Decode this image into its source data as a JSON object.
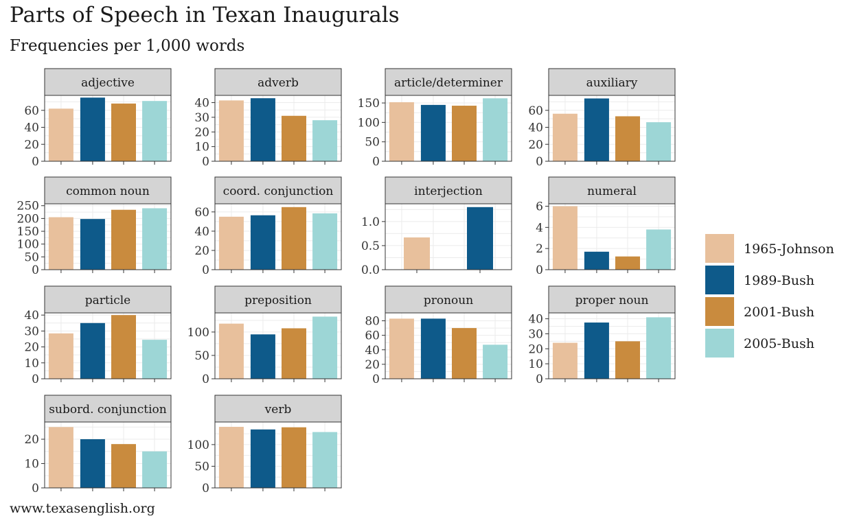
{
  "title": "Parts of Speech in Texan Inaugurals",
  "subtitle": "Frequencies per 1,000 words",
  "caption": "www.texasenglish.org",
  "chart_data": {
    "type": "bar",
    "facet": "free_y",
    "legend_position": "right",
    "grid": true,
    "series": [
      {
        "name": "1965-Johnson",
        "color": "#e8c09c"
      },
      {
        "name": "1989-Bush",
        "color": "#0e5a8a"
      },
      {
        "name": "2001-Bush",
        "color": "#c98b3e"
      },
      {
        "name": "2005-Bush",
        "color": "#9dd6d6"
      }
    ],
    "panels": [
      {
        "label": "adjective",
        "ylim": [
          0,
          76
        ],
        "ticks": [
          0,
          20,
          40,
          60
        ],
        "values": [
          {
            "series": 0,
            "value": 62
          },
          {
            "series": 1,
            "value": 75
          },
          {
            "series": 2,
            "value": 68
          },
          {
            "series": 3,
            "value": 71
          }
        ]
      },
      {
        "label": "adverb",
        "ylim": [
          0,
          44
        ],
        "ticks": [
          0,
          10,
          20,
          30,
          40
        ],
        "values": [
          {
            "series": 0,
            "value": 41.5
          },
          {
            "series": 1,
            "value": 43
          },
          {
            "series": 2,
            "value": 31
          },
          {
            "series": 3,
            "value": 28
          }
        ]
      },
      {
        "label": "article/determiner",
        "ylim": [
          0,
          166
        ],
        "ticks": [
          0,
          50,
          100,
          150
        ],
        "values": [
          {
            "series": 0,
            "value": 152
          },
          {
            "series": 1,
            "value": 145
          },
          {
            "series": 2,
            "value": 143
          },
          {
            "series": 3,
            "value": 162
          }
        ]
      },
      {
        "label": "auxiliary",
        "ylim": [
          0,
          76
        ],
        "ticks": [
          0,
          20,
          40,
          60
        ],
        "values": [
          {
            "series": 0,
            "value": 56
          },
          {
            "series": 1,
            "value": 74
          },
          {
            "series": 2,
            "value": 53
          },
          {
            "series": 3,
            "value": 46
          }
        ]
      },
      {
        "label": "common noun",
        "ylim": [
          0,
          252
        ],
        "ticks": [
          0,
          50,
          100,
          150,
          200,
          250
        ],
        "values": [
          {
            "series": 0,
            "value": 205
          },
          {
            "series": 1,
            "value": 198
          },
          {
            "series": 2,
            "value": 234
          },
          {
            "series": 3,
            "value": 240
          }
        ]
      },
      {
        "label": "coord. conjunction",
        "ylim": [
          0,
          67
        ],
        "ticks": [
          0,
          20,
          40,
          60
        ],
        "values": [
          {
            "series": 0,
            "value": 55
          },
          {
            "series": 1,
            "value": 56.5
          },
          {
            "series": 2,
            "value": 65
          },
          {
            "series": 3,
            "value": 58.5
          }
        ]
      },
      {
        "label": "interjection",
        "ylim": [
          0,
          1.34
        ],
        "ticks": [
          0.0,
          0.5,
          1.0
        ],
        "tick_labels": [
          "0.0",
          "0.5",
          "1.0"
        ],
        "values": [
          {
            "series": 0,
            "value": 0.67
          },
          {
            "series": 1,
            "value": 1.3
          }
        ]
      },
      {
        "label": "numeral",
        "ylim": [
          0,
          6.1
        ],
        "ticks": [
          0,
          2,
          4,
          6
        ],
        "values": [
          {
            "series": 0,
            "value": 6
          },
          {
            "series": 1,
            "value": 1.7
          },
          {
            "series": 2,
            "value": 1.25
          },
          {
            "series": 3,
            "value": 3.8
          }
        ]
      },
      {
        "label": "particle",
        "ylim": [
          0,
          40.5
        ],
        "ticks": [
          0,
          10,
          20,
          30,
          40
        ],
        "values": [
          {
            "series": 0,
            "value": 28.5
          },
          {
            "series": 1,
            "value": 35
          },
          {
            "series": 2,
            "value": 40
          },
          {
            "series": 3,
            "value": 24.5
          }
        ]
      },
      {
        "label": "preposition",
        "ylim": [
          0,
          138
        ],
        "ticks": [
          0,
          50,
          100
        ],
        "values": [
          {
            "series": 0,
            "value": 118
          },
          {
            "series": 1,
            "value": 95
          },
          {
            "series": 2,
            "value": 108
          },
          {
            "series": 3,
            "value": 133
          }
        ]
      },
      {
        "label": "pronoun",
        "ylim": [
          0,
          89
        ],
        "ticks": [
          0,
          20,
          40,
          60,
          80
        ],
        "values": [
          {
            "series": 0,
            "value": 83
          },
          {
            "series": 1,
            "value": 83
          },
          {
            "series": 2,
            "value": 70
          },
          {
            "series": 3,
            "value": 47
          }
        ]
      },
      {
        "label": "proper noun",
        "ylim": [
          0,
          43
        ],
        "ticks": [
          0,
          10,
          20,
          30,
          40
        ],
        "values": [
          {
            "series": 0,
            "value": 24
          },
          {
            "series": 1,
            "value": 37.5
          },
          {
            "series": 2,
            "value": 25
          },
          {
            "series": 3,
            "value": 41
          }
        ]
      },
      {
        "label": "subord. conjunction",
        "ylim": [
          0,
          26.5
        ],
        "ticks": [
          0,
          10,
          20
        ],
        "values": [
          {
            "series": 0,
            "value": 25
          },
          {
            "series": 1,
            "value": 20
          },
          {
            "series": 2,
            "value": 18
          },
          {
            "series": 3,
            "value": 15
          }
        ]
      },
      {
        "label": "verb",
        "ylim": [
          0,
          149
        ],
        "ticks": [
          0,
          50,
          100
        ],
        "values": [
          {
            "series": 0,
            "value": 141
          },
          {
            "series": 1,
            "value": 135
          },
          {
            "series": 2,
            "value": 140
          },
          {
            "series": 3,
            "value": 129
          }
        ]
      }
    ]
  }
}
